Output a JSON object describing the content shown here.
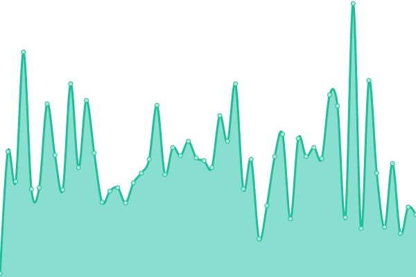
{
  "chart_data": {
    "type": "area",
    "title": "",
    "xlabel": "",
    "ylabel": "",
    "grid": false,
    "ylim": [
      0,
      400
    ],
    "x": [
      0,
      1,
      2,
      3,
      4,
      5,
      6,
      7,
      8,
      9,
      10,
      11,
      12,
      13,
      14,
      15,
      16,
      17,
      18,
      19,
      20,
      21,
      22,
      23,
      24,
      25,
      26,
      27,
      28,
      29,
      30,
      31,
      32,
      33,
      34,
      35,
      36,
      37,
      38,
      39,
      40,
      41,
      42,
      43,
      44,
      45,
      46,
      47,
      48,
      49,
      50,
      51,
      52,
      53
    ],
    "values": [
      5,
      181,
      138,
      325,
      127,
      129,
      250,
      176,
      126,
      279,
      158,
      255,
      179,
      108,
      124,
      129,
      107,
      136,
      150,
      170,
      248,
      148,
      187,
      175,
      196,
      172,
      168,
      158,
      233,
      196,
      279,
      127,
      170,
      55,
      103,
      174,
      206,
      84,
      200,
      174,
      187,
      171,
      263,
      247,
      86,
      395,
      70,
      284,
      150,
      72,
      164,
      63,
      101,
      90
    ],
    "colors": {
      "line": "#1dbf98",
      "fill": "#88dfcf",
      "marker_fill": "#a8e9db"
    }
  }
}
